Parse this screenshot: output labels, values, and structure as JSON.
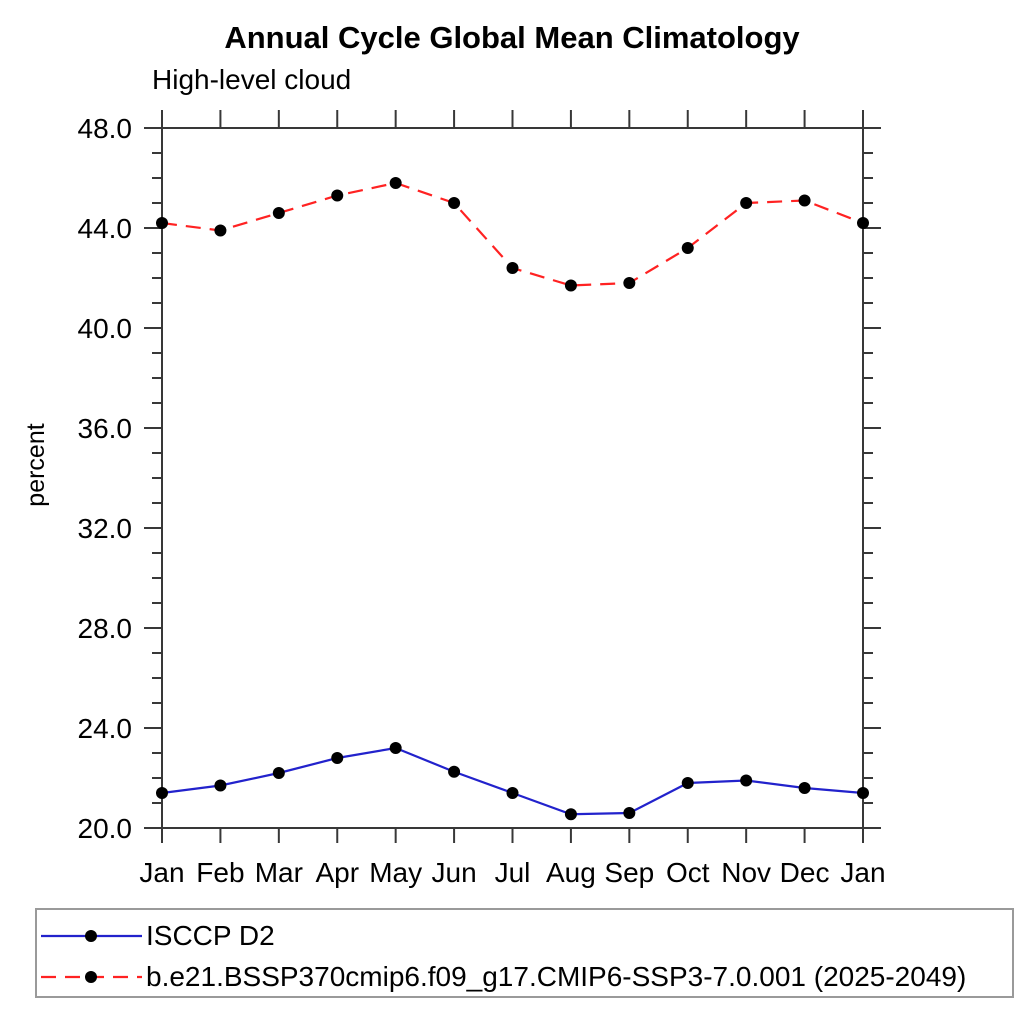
{
  "page": {
    "title": "Annual Cycle Global Mean Climatology",
    "subtitle": "High-level cloud"
  },
  "chart_data": {
    "type": "line",
    "title": "Annual Cycle Global Mean Climatology",
    "subtitle": "High-level cloud",
    "xlabel": "",
    "ylabel": "percent",
    "x_categories": [
      "Jan",
      "Feb",
      "Mar",
      "Apr",
      "May",
      "Jun",
      "Jul",
      "Aug",
      "Sep",
      "Oct",
      "Nov",
      "Dec",
      "Jan"
    ],
    "ylim": [
      20.0,
      48.0
    ],
    "ytick_step": 4.0,
    "yminor_step": 1.0,
    "grid": false,
    "legend_position": "bottom",
    "series": [
      {
        "name": "ISCCP D2",
        "color": "#2222cc",
        "line_style": "solid",
        "marker": "filled-circle",
        "marker_color": "#000000",
        "values": [
          21.4,
          21.7,
          22.2,
          22.8,
          23.2,
          22.25,
          21.4,
          20.55,
          20.6,
          21.8,
          21.9,
          21.6,
          21.4
        ]
      },
      {
        "name": "b.e21.BSSP370cmip6.f09_g17.CMIP6-SSP3-7.0.001 (2025-2049)",
        "color": "#ff2222",
        "line_style": "dashed",
        "marker": "filled-circle",
        "marker_color": "#000000",
        "values": [
          44.2,
          43.9,
          44.6,
          45.3,
          45.8,
          45.0,
          42.4,
          41.7,
          41.8,
          43.2,
          45.0,
          45.1,
          44.2
        ]
      }
    ]
  }
}
